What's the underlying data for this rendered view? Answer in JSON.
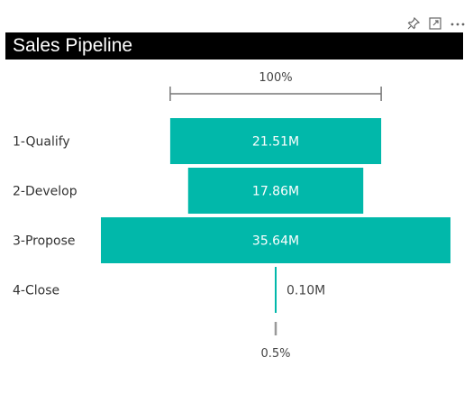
{
  "header": {
    "title": "Sales Pipeline",
    "icons": [
      "pin-icon",
      "focus-mode-icon",
      "more-options-icon"
    ]
  },
  "colors": {
    "bar": "#01B8AA",
    "bar_label": "#ffffff",
    "category_label": "#333333",
    "value_label": "#444444",
    "axis": "#777777",
    "title_bg": "#000000",
    "title_text": "#ffffff"
  },
  "chart_data": {
    "type": "funnel",
    "title": "Sales Pipeline",
    "categories": [
      "1-Qualify",
      "2-Develop",
      "3-Propose",
      "4-Close"
    ],
    "values": [
      21.51,
      17.86,
      35.64,
      0.1
    ],
    "value_labels": [
      "21.51M",
      "17.86M",
      "35.64M",
      "0.10M"
    ],
    "unit": "M",
    "top_percent_label": "100%",
    "bottom_percent_label": "0.5%"
  }
}
